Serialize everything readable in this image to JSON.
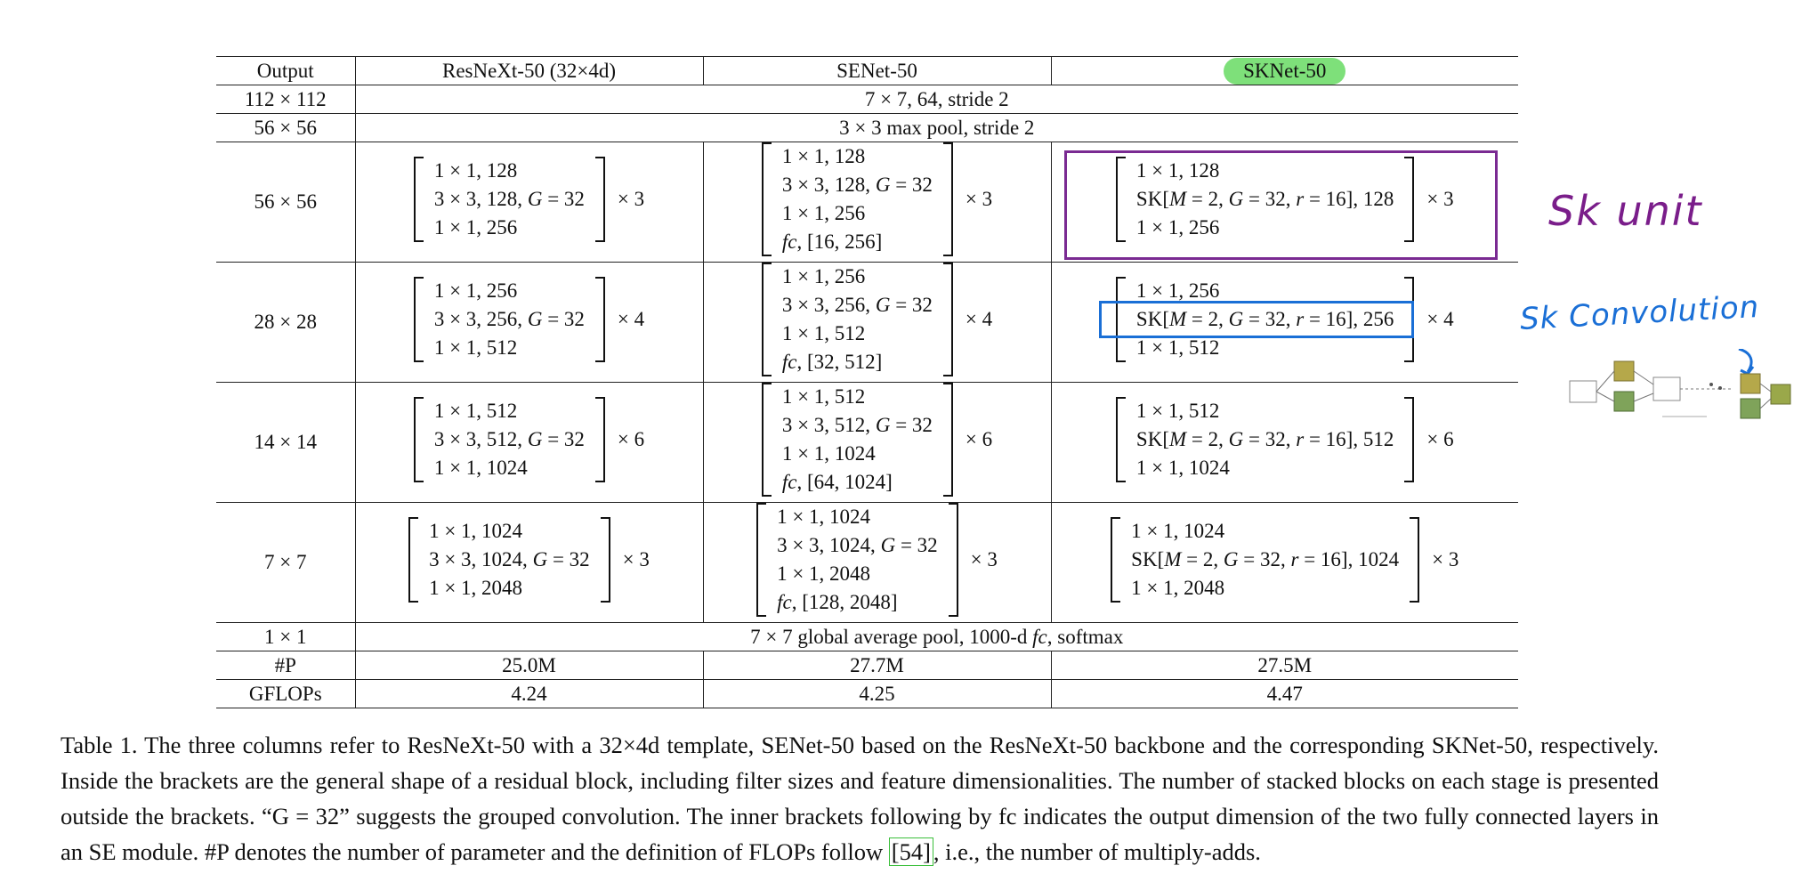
{
  "table": {
    "headers": [
      "Output",
      "ResNeXt-50 (32×4d)",
      "SENet-50",
      "SKNet-50"
    ],
    "row_stem": {
      "output": "112 × 112",
      "text": "7 × 7, 64, stride 2"
    },
    "row_pool": {
      "output": "56 × 56",
      "text": "3 × 3 max pool, stride 2"
    },
    "stages": [
      {
        "output": "56 × 56",
        "resnext": {
          "lines": [
            "1 × 1, 128",
            "3 × 3, 128, G = 32",
            "1 × 1, 256"
          ],
          "repeat": "× 3"
        },
        "senet": {
          "lines": [
            "1 × 1, 128",
            "3 × 3, 128, G = 32",
            "1 × 1, 256",
            "fc, [16, 256]"
          ],
          "repeat": "× 3"
        },
        "sknet": {
          "lines": [
            "1 × 1, 128",
            "SK[M = 2, G = 32, r = 16], 128",
            "1 × 1, 256"
          ],
          "repeat": "× 3"
        }
      },
      {
        "output": "28 × 28",
        "resnext": {
          "lines": [
            "1 × 1, 256",
            "3 × 3, 256, G = 32",
            "1 × 1, 512"
          ],
          "repeat": "× 4"
        },
        "senet": {
          "lines": [
            "1 × 1, 256",
            "3 × 3, 256, G = 32",
            "1 × 1, 512",
            "fc, [32, 512]"
          ],
          "repeat": "× 4"
        },
        "sknet": {
          "lines": [
            "1 × 1, 256",
            "SK[M = 2, G = 32, r = 16], 256",
            "1 × 1, 512"
          ],
          "repeat": "× 4"
        }
      },
      {
        "output": "14 × 14",
        "resnext": {
          "lines": [
            "1 × 1, 512",
            "3 × 3, 512, G = 32",
            "1 × 1, 1024"
          ],
          "repeat": "× 6"
        },
        "senet": {
          "lines": [
            "1 × 1, 512",
            "3 × 3, 512, G = 32",
            "1 × 1, 1024",
            "fc, [64, 1024]"
          ],
          "repeat": "× 6"
        },
        "sknet": {
          "lines": [
            "1 × 1, 512",
            "SK[M = 2, G = 32, r = 16], 512",
            "1 × 1, 1024"
          ],
          "repeat": "× 6"
        }
      },
      {
        "output": "7 × 7",
        "resnext": {
          "lines": [
            "1 × 1, 1024",
            "3 × 3, 1024, G = 32",
            "1 × 1, 2048"
          ],
          "repeat": "× 3"
        },
        "senet": {
          "lines": [
            "1 × 1, 1024",
            "3 × 3, 1024, G = 32",
            "1 × 1, 2048",
            "fc, [128, 2048]"
          ],
          "repeat": "× 3"
        },
        "sknet": {
          "lines": [
            "1 × 1, 1024",
            "SK[M = 2, G = 32, r = 16], 1024",
            "1 × 1, 2048"
          ],
          "repeat": "× 3"
        }
      }
    ],
    "row_head": {
      "output": "1 × 1",
      "text": "7 × 7 global average pool, 1000-d fc, softmax"
    },
    "row_params": {
      "label": "#P",
      "values": [
        "25.0M",
        "27.7M",
        "27.5M"
      ]
    },
    "row_flops": {
      "label": "GFLOPs",
      "values": [
        "4.24",
        "4.25",
        "4.47"
      ]
    }
  },
  "annotations": {
    "sk_unit": "Sk unit",
    "sk_convolution": "Sk Convolution",
    "highlight_color": "#7ee07a",
    "unit_box_color": "#7a2a92",
    "conv_box_color": "#1a6fd6"
  },
  "caption": {
    "part1": "Table 1. The three columns refer to ResNeXt-50 with a 32×4d template, SENet-50 based on the ResNeXt-50 backbone and the corresponding SKNet-50, respectively. Inside the brackets are the general shape of a residual block, including filter sizes and feature dimensionalities. The number of stacked blocks on each stage is presented outside the brackets. “G = 32” suggests the grouped convolution. The inner brackets following by fc indicates the output dimension of the two fully connected layers in an SE module. #P denotes the number of parameter and the definition of FLOPs follow ",
    "ref": "[54]",
    "part2": ", i.e., the number of multiply-adds."
  }
}
